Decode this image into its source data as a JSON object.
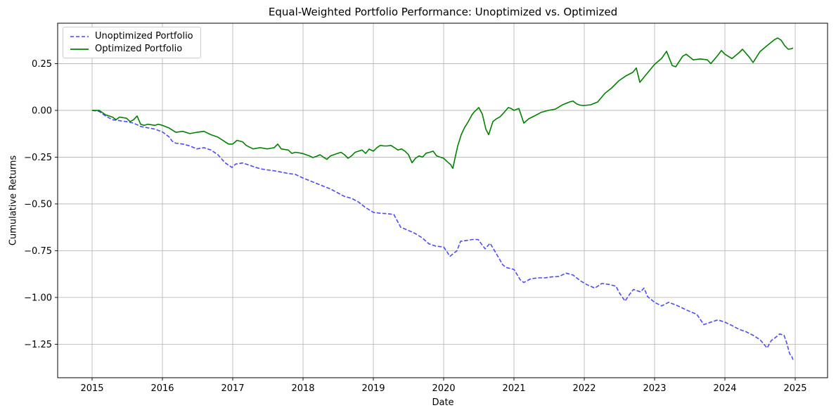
{
  "chart_data": {
    "type": "line",
    "title": "Equal-Weighted Portfolio Performance: Unoptimized vs. Optimized",
    "xlabel": "Date",
    "ylabel": "Cumulative Returns",
    "xlim": [
      2014.51,
      2025.46
    ],
    "ylim": [
      -1.429,
      0.466
    ],
    "x_ticks": [
      2015,
      2016,
      2017,
      2018,
      2019,
      2020,
      2021,
      2022,
      2023,
      2024,
      2025
    ],
    "x_tick_labels": [
      "2015",
      "2016",
      "2017",
      "2018",
      "2019",
      "2020",
      "2021",
      "2022",
      "2023",
      "2024",
      "2025"
    ],
    "y_ticks": [
      0.25,
      0.0,
      -0.25,
      -0.5,
      -0.75,
      -1.0,
      -1.25
    ],
    "y_tick_labels": [
      "0.25",
      "0.00",
      "−0.25",
      "−0.50",
      "−0.75",
      "−1.00",
      "−1.25"
    ],
    "grid": true,
    "grid_color": "#b0b0b0",
    "legend_location": "upper left",
    "background": "#ffffff",
    "series": [
      {
        "name": "Unoptimized Portfolio",
        "color": "#4c4cf0",
        "line_style": "dashed",
        "points": [
          [
            2015.0,
            0.0
          ],
          [
            2015.1,
            -0.005
          ],
          [
            2015.19,
            -0.03
          ],
          [
            2015.29,
            -0.05
          ],
          [
            2015.39,
            -0.055
          ],
          [
            2015.49,
            -0.06
          ],
          [
            2015.59,
            -0.068
          ],
          [
            2015.69,
            -0.086
          ],
          [
            2015.79,
            -0.093
          ],
          [
            2015.89,
            -0.1
          ],
          [
            2016.0,
            -0.115
          ],
          [
            2016.09,
            -0.14
          ],
          [
            2016.14,
            -0.165
          ],
          [
            2016.19,
            -0.175
          ],
          [
            2016.29,
            -0.18
          ],
          [
            2016.39,
            -0.19
          ],
          [
            2016.49,
            -0.206
          ],
          [
            2016.59,
            -0.199
          ],
          [
            2016.69,
            -0.212
          ],
          [
            2016.79,
            -0.237
          ],
          [
            2016.89,
            -0.28
          ],
          [
            2016.99,
            -0.305
          ],
          [
            2017.04,
            -0.287
          ],
          [
            2017.14,
            -0.281
          ],
          [
            2017.19,
            -0.287
          ],
          [
            2017.29,
            -0.3
          ],
          [
            2017.39,
            -0.312
          ],
          [
            2017.49,
            -0.318
          ],
          [
            2017.59,
            -0.323
          ],
          [
            2017.69,
            -0.33
          ],
          [
            2017.79,
            -0.337
          ],
          [
            2017.89,
            -0.342
          ],
          [
            2017.99,
            -0.36
          ],
          [
            2018.09,
            -0.375
          ],
          [
            2018.19,
            -0.39
          ],
          [
            2018.29,
            -0.405
          ],
          [
            2018.39,
            -0.42
          ],
          [
            2018.49,
            -0.44
          ],
          [
            2018.59,
            -0.46
          ],
          [
            2018.69,
            -0.47
          ],
          [
            2018.79,
            -0.49
          ],
          [
            2018.89,
            -0.52
          ],
          [
            2019.0,
            -0.545
          ],
          [
            2019.1,
            -0.55
          ],
          [
            2019.2,
            -0.552
          ],
          [
            2019.29,
            -0.556
          ],
          [
            2019.39,
            -0.625
          ],
          [
            2019.49,
            -0.64
          ],
          [
            2019.59,
            -0.657
          ],
          [
            2019.69,
            -0.68
          ],
          [
            2019.79,
            -0.713
          ],
          [
            2019.89,
            -0.726
          ],
          [
            2020.0,
            -0.73
          ],
          [
            2020.09,
            -0.78
          ],
          [
            2020.19,
            -0.75
          ],
          [
            2020.24,
            -0.7
          ],
          [
            2020.33,
            -0.695
          ],
          [
            2020.41,
            -0.69
          ],
          [
            2020.49,
            -0.69
          ],
          [
            2020.59,
            -0.74
          ],
          [
            2020.66,
            -0.71
          ],
          [
            2020.74,
            -0.76
          ],
          [
            2020.84,
            -0.825
          ],
          [
            2020.89,
            -0.84
          ],
          [
            2021.0,
            -0.85
          ],
          [
            2021.09,
            -0.906
          ],
          [
            2021.14,
            -0.92
          ],
          [
            2021.24,
            -0.9
          ],
          [
            2021.34,
            -0.895
          ],
          [
            2021.44,
            -0.895
          ],
          [
            2021.54,
            -0.89
          ],
          [
            2021.64,
            -0.888
          ],
          [
            2021.74,
            -0.87
          ],
          [
            2021.84,
            -0.88
          ],
          [
            2021.94,
            -0.91
          ],
          [
            2022.04,
            -0.932
          ],
          [
            2022.15,
            -0.95
          ],
          [
            2022.25,
            -0.925
          ],
          [
            2022.35,
            -0.93
          ],
          [
            2022.45,
            -0.94
          ],
          [
            2022.5,
            -0.976
          ],
          [
            2022.58,
            -1.019
          ],
          [
            2022.65,
            -0.98
          ],
          [
            2022.7,
            -0.957
          ],
          [
            2022.8,
            -0.97
          ],
          [
            2022.85,
            -0.95
          ],
          [
            2022.9,
            -0.995
          ],
          [
            2023.0,
            -1.026
          ],
          [
            2023.1,
            -1.045
          ],
          [
            2023.2,
            -1.026
          ],
          [
            2023.3,
            -1.04
          ],
          [
            2023.4,
            -1.057
          ],
          [
            2023.5,
            -1.075
          ],
          [
            2023.6,
            -1.09
          ],
          [
            2023.7,
            -1.145
          ],
          [
            2023.8,
            -1.132
          ],
          [
            2023.9,
            -1.12
          ],
          [
            2024.0,
            -1.132
          ],
          [
            2024.1,
            -1.15
          ],
          [
            2024.2,
            -1.17
          ],
          [
            2024.3,
            -1.183
          ],
          [
            2024.4,
            -1.202
          ],
          [
            2024.5,
            -1.226
          ],
          [
            2024.6,
            -1.27
          ],
          [
            2024.66,
            -1.23
          ],
          [
            2024.72,
            -1.214
          ],
          [
            2024.78,
            -1.195
          ],
          [
            2024.84,
            -1.202
          ],
          [
            2024.88,
            -1.244
          ],
          [
            2024.92,
            -1.3
          ],
          [
            2024.95,
            -1.315
          ],
          [
            2024.97,
            -1.333
          ]
        ]
      },
      {
        "name": "Optimized Portfolio",
        "color": "#008000",
        "line_style": "solid",
        "points": [
          [
            2015.0,
            0.0
          ],
          [
            2015.1,
            0.0
          ],
          [
            2015.19,
            -0.023
          ],
          [
            2015.29,
            -0.036
          ],
          [
            2015.34,
            -0.05
          ],
          [
            2015.39,
            -0.036
          ],
          [
            2015.49,
            -0.042
          ],
          [
            2015.54,
            -0.06
          ],
          [
            2015.59,
            -0.05
          ],
          [
            2015.64,
            -0.03
          ],
          [
            2015.69,
            -0.074
          ],
          [
            2015.74,
            -0.08
          ],
          [
            2015.79,
            -0.074
          ],
          [
            2015.89,
            -0.08
          ],
          [
            2015.94,
            -0.074
          ],
          [
            2016.0,
            -0.08
          ],
          [
            2016.09,
            -0.093
          ],
          [
            2016.19,
            -0.117
          ],
          [
            2016.29,
            -0.112
          ],
          [
            2016.39,
            -0.124
          ],
          [
            2016.49,
            -0.117
          ],
          [
            2016.59,
            -0.112
          ],
          [
            2016.69,
            -0.13
          ],
          [
            2016.79,
            -0.143
          ],
          [
            2016.89,
            -0.168
          ],
          [
            2016.94,
            -0.18
          ],
          [
            2017.0,
            -0.18
          ],
          [
            2017.06,
            -0.16
          ],
          [
            2017.14,
            -0.168
          ],
          [
            2017.19,
            -0.187
          ],
          [
            2017.29,
            -0.206
          ],
          [
            2017.39,
            -0.199
          ],
          [
            2017.49,
            -0.206
          ],
          [
            2017.59,
            -0.199
          ],
          [
            2017.64,
            -0.18
          ],
          [
            2017.69,
            -0.206
          ],
          [
            2017.79,
            -0.212
          ],
          [
            2017.84,
            -0.23
          ],
          [
            2017.89,
            -0.224
          ],
          [
            2017.99,
            -0.23
          ],
          [
            2018.09,
            -0.243
          ],
          [
            2018.14,
            -0.252
          ],
          [
            2018.19,
            -0.246
          ],
          [
            2018.24,
            -0.237
          ],
          [
            2018.29,
            -0.25
          ],
          [
            2018.34,
            -0.262
          ],
          [
            2018.39,
            -0.243
          ],
          [
            2018.49,
            -0.23
          ],
          [
            2018.54,
            -0.224
          ],
          [
            2018.59,
            -0.237
          ],
          [
            2018.64,
            -0.256
          ],
          [
            2018.69,
            -0.243
          ],
          [
            2018.74,
            -0.224
          ],
          [
            2018.79,
            -0.218
          ],
          [
            2018.84,
            -0.212
          ],
          [
            2018.89,
            -0.23
          ],
          [
            2018.94,
            -0.207
          ],
          [
            2019.0,
            -0.218
          ],
          [
            2019.05,
            -0.199
          ],
          [
            2019.1,
            -0.187
          ],
          [
            2019.15,
            -0.19
          ],
          [
            2019.2,
            -0.19
          ],
          [
            2019.25,
            -0.187
          ],
          [
            2019.3,
            -0.199
          ],
          [
            2019.35,
            -0.212
          ],
          [
            2019.4,
            -0.206
          ],
          [
            2019.45,
            -0.218
          ],
          [
            2019.5,
            -0.237
          ],
          [
            2019.55,
            -0.28
          ],
          [
            2019.6,
            -0.256
          ],
          [
            2019.65,
            -0.243
          ],
          [
            2019.7,
            -0.25
          ],
          [
            2019.75,
            -0.229
          ],
          [
            2019.8,
            -0.224
          ],
          [
            2019.85,
            -0.218
          ],
          [
            2019.9,
            -0.243
          ],
          [
            2019.95,
            -0.25
          ],
          [
            2020.0,
            -0.256
          ],
          [
            2020.05,
            -0.274
          ],
          [
            2020.1,
            -0.29
          ],
          [
            2020.13,
            -0.31
          ],
          [
            2020.17,
            -0.24
          ],
          [
            2020.2,
            -0.19
          ],
          [
            2020.25,
            -0.13
          ],
          [
            2020.3,
            -0.09
          ],
          [
            2020.35,
            -0.06
          ],
          [
            2020.4,
            -0.025
          ],
          [
            2020.43,
            -0.01
          ],
          [
            2020.5,
            0.015
          ],
          [
            2020.55,
            -0.02
          ],
          [
            2020.6,
            -0.1
          ],
          [
            2020.64,
            -0.13
          ],
          [
            2020.7,
            -0.06
          ],
          [
            2020.75,
            -0.045
          ],
          [
            2020.8,
            -0.035
          ],
          [
            2020.85,
            -0.015
          ],
          [
            2020.92,
            0.015
          ],
          [
            2020.96,
            0.01
          ],
          [
            2021.0,
            0.0
          ],
          [
            2021.07,
            0.01
          ],
          [
            2021.14,
            -0.068
          ],
          [
            2021.21,
            -0.045
          ],
          [
            2021.29,
            -0.03
          ],
          [
            2021.39,
            -0.01
          ],
          [
            2021.49,
            0.0
          ],
          [
            2021.59,
            0.007
          ],
          [
            2021.69,
            0.03
          ],
          [
            2021.79,
            0.045
          ],
          [
            2021.84,
            0.05
          ],
          [
            2021.89,
            0.035
          ],
          [
            2021.94,
            0.028
          ],
          [
            2021.99,
            0.026
          ],
          [
            2022.09,
            0.03
          ],
          [
            2022.19,
            0.045
          ],
          [
            2022.29,
            0.09
          ],
          [
            2022.39,
            0.12
          ],
          [
            2022.49,
            0.158
          ],
          [
            2022.59,
            0.184
          ],
          [
            2022.69,
            0.203
          ],
          [
            2022.74,
            0.227
          ],
          [
            2022.79,
            0.15
          ],
          [
            2022.89,
            0.196
          ],
          [
            2023.0,
            0.246
          ],
          [
            2023.1,
            0.278
          ],
          [
            2023.17,
            0.316
          ],
          [
            2023.25,
            0.24
          ],
          [
            2023.3,
            0.233
          ],
          [
            2023.4,
            0.29
          ],
          [
            2023.45,
            0.3
          ],
          [
            2023.55,
            0.27
          ],
          [
            2023.65,
            0.275
          ],
          [
            2023.75,
            0.27
          ],
          [
            2023.8,
            0.25
          ],
          [
            2023.9,
            0.295
          ],
          [
            2023.95,
            0.32
          ],
          [
            2024.0,
            0.3
          ],
          [
            2024.1,
            0.277
          ],
          [
            2024.2,
            0.308
          ],
          [
            2024.25,
            0.327
          ],
          [
            2024.35,
            0.283
          ],
          [
            2024.4,
            0.256
          ],
          [
            2024.5,
            0.315
          ],
          [
            2024.6,
            0.346
          ],
          [
            2024.7,
            0.377
          ],
          [
            2024.75,
            0.387
          ],
          [
            2024.8,
            0.375
          ],
          [
            2024.85,
            0.346
          ],
          [
            2024.9,
            0.327
          ],
          [
            2024.95,
            0.33
          ],
          [
            2024.97,
            0.334
          ]
        ]
      }
    ]
  }
}
